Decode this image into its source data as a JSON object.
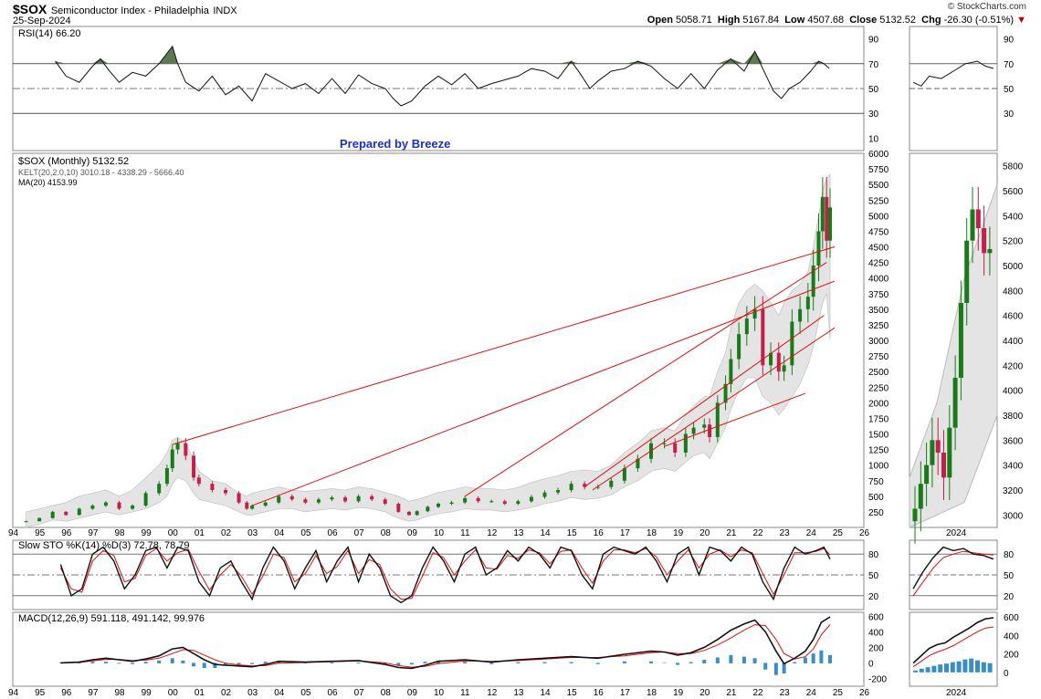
{
  "header": {
    "symbol": "$SOX",
    "name": "Semiconductor Index - Philadelphia",
    "exchange": "INDX",
    "date": "25-Sep-2024",
    "copyright": "© StockCharts.com",
    "open_label": "Open",
    "open": "5058.71",
    "high_label": "High",
    "high": "5167.84",
    "low_label": "Low",
    "low": "4507.68",
    "close_label": "Close",
    "close": "5132.52",
    "chg_label": "Chg",
    "chg": "-26.30 (-0.51%)",
    "down_arrow": "▼"
  },
  "annotation": "Prepared by Breeze",
  "colors": {
    "up": "#1a7a1a",
    "down": "#c0204a",
    "trendline": "#e01010",
    "rsi_fill": "#5c7a52",
    "macd_hist": "#3a8fc0",
    "signal": "#e01010",
    "band": "#e4e4e4"
  },
  "chart_data": [
    {
      "id": "rsi",
      "type": "line",
      "label": "RSI(14) 66.20",
      "ylim": [
        0,
        100
      ],
      "yticks": [
        10,
        30,
        50,
        70,
        90
      ],
      "reference_lines": [
        30,
        50,
        70
      ],
      "x": [
        1995.6,
        1996.0,
        1996.5,
        1997.0,
        1997.3,
        1997.6,
        1998.0,
        1998.5,
        1999.0,
        1999.5,
        2000.0,
        2000.2,
        2000.5,
        2001.0,
        2001.5,
        2002.0,
        2002.5,
        2003.0,
        2003.5,
        2004.0,
        2004.5,
        2005.0,
        2005.5,
        2006.0,
        2006.5,
        2007.0,
        2007.5,
        2008.0,
        2008.3,
        2008.6,
        2009.0,
        2009.5,
        2010.0,
        2010.5,
        2011.0,
        2011.5,
        2012.0,
        2012.5,
        2013.0,
        2013.5,
        2014.0,
        2014.5,
        2015.0,
        2015.3,
        2015.7,
        2016.0,
        2016.5,
        2017.0,
        2017.5,
        2018.0,
        2018.5,
        2019.0,
        2019.5,
        2020.0,
        2020.5,
        2021.0,
        2021.5,
        2021.9,
        2022.2,
        2022.6,
        2022.9,
        2023.2,
        2023.6,
        2024.0,
        2024.3,
        2024.5,
        2024.7
      ],
      "y": [
        72,
        60,
        55,
        68,
        74,
        65,
        55,
        63,
        60,
        70,
        84,
        70,
        55,
        48,
        60,
        45,
        52,
        40,
        62,
        56,
        50,
        54,
        46,
        58,
        46,
        61,
        54,
        50,
        42,
        36,
        40,
        52,
        60,
        53,
        62,
        50,
        54,
        57,
        60,
        66,
        64,
        58,
        72,
        63,
        50,
        56,
        64,
        66,
        72,
        68,
        58,
        50,
        62,
        50,
        65,
        74,
        64,
        80,
        66,
        48,
        42,
        50,
        55,
        64,
        72,
        70,
        66.2
      ]
    },
    {
      "id": "price",
      "type": "candlestick",
      "title": "$SOX (Monthly) 5132.52",
      "kelt_label": "KELT(20,2.0,10) 3010.18 - 4338.29 - 5666.40",
      "ma_label": "MA(20) 4153.99",
      "ylim": [
        0,
        6000
      ],
      "yticks": [
        250,
        500,
        750,
        1000,
        1250,
        1500,
        1750,
        2000,
        2250,
        2500,
        2750,
        3000,
        3250,
        3500,
        3750,
        4000,
        4250,
        4500,
        4750,
        5000,
        5250,
        5500,
        5750,
        6000
      ],
      "xticks": [
        "94",
        "95",
        "96",
        "97",
        "98",
        "99",
        "00",
        "01",
        "02",
        "03",
        "04",
        "05",
        "06",
        "07",
        "08",
        "09",
        "10",
        "11",
        "12",
        "13",
        "14",
        "15",
        "16",
        "17",
        "18",
        "19",
        "20",
        "21",
        "22",
        "23",
        "24",
        "25",
        "26"
      ],
      "x": [
        1994.5,
        1995.0,
        1995.5,
        1996.0,
        1996.5,
        1997.0,
        1997.5,
        1998.0,
        1998.5,
        1999.0,
        1999.5,
        1999.8,
        2000.0,
        2000.2,
        2000.5,
        2000.8,
        2001.0,
        2001.5,
        2002.0,
        2002.5,
        2002.8,
        2003.0,
        2003.5,
        2004.0,
        2004.5,
        2005.0,
        2005.5,
        2006.0,
        2006.5,
        2007.0,
        2007.5,
        2008.0,
        2008.5,
        2008.9,
        2009.2,
        2009.6,
        2010.0,
        2010.5,
        2011.0,
        2011.5,
        2012.0,
        2012.5,
        2013.0,
        2013.5,
        2014.0,
        2014.5,
        2015.0,
        2015.5,
        2016.0,
        2016.5,
        2017.0,
        2017.5,
        2018.0,
        2018.5,
        2018.9,
        2019.3,
        2019.6,
        2020.0,
        2020.2,
        2020.5,
        2020.8,
        2021.0,
        2021.3,
        2021.6,
        2021.9,
        2022.2,
        2022.5,
        2022.8,
        2023.0,
        2023.3,
        2023.6,
        2023.9,
        2024.1,
        2024.3,
        2024.45,
        2024.6,
        2024.73
      ],
      "y": [
        100,
        150,
        250,
        200,
        300,
        350,
        400,
        300,
        350,
        550,
        700,
        950,
        1250,
        1350,
        1150,
        800,
        700,
        600,
        550,
        400,
        300,
        350,
        400,
        500,
        450,
        400,
        450,
        480,
        420,
        500,
        450,
        380,
        250,
        200,
        260,
        330,
        380,
        400,
        470,
        420,
        420,
        380,
        420,
        490,
        560,
        600,
        700,
        650,
        650,
        750,
        950,
        1100,
        1350,
        1350,
        1200,
        1500,
        1600,
        1650,
        1450,
        2000,
        2300,
        2700,
        3100,
        3350,
        3500,
        2600,
        2800,
        2500,
        2600,
        3300,
        3500,
        3700,
        4200,
        4750,
        5300,
        4600,
        5132.52
      ],
      "keltner_upper": [
        250,
        300,
        350,
        400,
        500,
        550,
        600,
        500,
        600,
        800,
        1000,
        1200,
        1400,
        1450,
        1350,
        1100,
        900,
        750,
        700,
        550,
        500,
        550,
        600,
        650,
        600,
        580,
        600,
        620,
        600,
        650,
        620,
        560,
        500,
        420,
        450,
        500,
        560,
        600,
        650,
        620,
        620,
        600,
        640,
        720,
        780,
        830,
        900,
        920,
        900,
        1000,
        1200,
        1350,
        1550,
        1600,
        1550,
        1800,
        1950,
        2100,
        2100,
        2500,
        2800,
        3200,
        3600,
        3800,
        3900,
        3800,
        3600,
        3400,
        3600,
        3800,
        3900,
        4100,
        4500,
        5000,
        5400,
        5600,
        5666.4
      ],
      "keltner_lower": [
        0,
        50,
        120,
        100,
        150,
        200,
        250,
        200,
        250,
        300,
        400,
        500,
        700,
        800,
        750,
        550,
        450,
        400,
        350,
        250,
        200,
        200,
        250,
        300,
        300,
        250,
        280,
        300,
        280,
        320,
        300,
        250,
        150,
        100,
        120,
        180,
        220,
        250,
        300,
        280,
        280,
        250,
        280,
        320,
        380,
        420,
        480,
        450,
        470,
        520,
        650,
        750,
        900,
        950,
        900,
        1050,
        1150,
        1200,
        1100,
        1350,
        1600,
        1900,
        2200,
        2400,
        2400,
        2100,
        2000,
        1800,
        1900,
        2100,
        2300,
        2600,
        2900,
        3300,
        3600,
        3750,
        3010.18
      ]
    },
    {
      "id": "sto",
      "type": "line",
      "label": "Slow STO %K(14) %D(3) 72.78, 78.79",
      "ylim": [
        0,
        100
      ],
      "yticks": [
        20,
        50,
        80
      ],
      "reference_lines": [
        20,
        50,
        80
      ],
      "x": [
        1995.8,
        1996.2,
        1996.6,
        1997.0,
        1997.4,
        1997.8,
        1998.2,
        1998.6,
        1999.0,
        1999.4,
        1999.8,
        2000.2,
        2000.6,
        2001.0,
        2001.4,
        2001.8,
        2002.2,
        2002.6,
        2003.0,
        2003.4,
        2003.8,
        2004.2,
        2004.6,
        2005.0,
        2005.4,
        2005.8,
        2006.2,
        2006.6,
        2007.0,
        2007.4,
        2007.8,
        2008.2,
        2008.6,
        2009.0,
        2009.4,
        2009.8,
        2010.2,
        2010.6,
        2011.0,
        2011.4,
        2011.8,
        2012.2,
        2012.6,
        2013.0,
        2013.4,
        2013.8,
        2014.2,
        2014.6,
        2015.0,
        2015.4,
        2015.8,
        2016.2,
        2016.6,
        2017.0,
        2017.4,
        2017.8,
        2018.2,
        2018.6,
        2019.0,
        2019.4,
        2019.8,
        2020.2,
        2020.6,
        2021.0,
        2021.4,
        2021.8,
        2022.2,
        2022.6,
        2023.0,
        2023.4,
        2023.8,
        2024.2,
        2024.5,
        2024.73
      ],
      "k": [
        65,
        20,
        30,
        80,
        90,
        70,
        30,
        50,
        85,
        90,
        60,
        90,
        85,
        40,
        20,
        60,
        70,
        40,
        15,
        60,
        90,
        70,
        30,
        60,
        85,
        40,
        70,
        90,
        40,
        80,
        60,
        20,
        10,
        20,
        60,
        90,
        70,
        40,
        80,
        90,
        50,
        60,
        85,
        70,
        90,
        80,
        60,
        90,
        85,
        50,
        30,
        80,
        90,
        85,
        80,
        90,
        70,
        40,
        80,
        90,
        50,
        90,
        85,
        70,
        90,
        80,
        40,
        15,
        60,
        90,
        80,
        85,
        90,
        72.78
      ],
      "d": [
        60,
        30,
        25,
        70,
        85,
        78,
        40,
        45,
        78,
        88,
        70,
        82,
        87,
        55,
        28,
        50,
        65,
        48,
        22,
        48,
        80,
        75,
        40,
        52,
        78,
        52,
        62,
        85,
        52,
        72,
        65,
        30,
        15,
        16,
        48,
        82,
        75,
        50,
        70,
        86,
        60,
        58,
        78,
        74,
        86,
        82,
        66,
        84,
        86,
        60,
        38,
        70,
        86,
        86,
        82,
        88,
        76,
        50,
        70,
        86,
        60,
        80,
        86,
        76,
        86,
        82,
        52,
        22,
        50,
        82,
        82,
        84,
        88,
        78.79
      ]
    },
    {
      "id": "macd",
      "type": "line",
      "label": "MACD(12,26,9) 591.118, 491.142, 99.976",
      "ylim": [
        -300,
        650
      ],
      "yticks": [
        -200,
        0,
        200,
        400,
        600
      ],
      "x": [
        1995.8,
        1996.5,
        1997.0,
        1997.5,
        1998.0,
        1998.5,
        1999.0,
        1999.5,
        2000.0,
        2000.4,
        2000.8,
        2001.2,
        2001.6,
        2002.0,
        2002.5,
        2003.0,
        2003.5,
        2004.0,
        2005.0,
        2006.0,
        2007.0,
        2008.0,
        2008.5,
        2009.0,
        2009.5,
        2010.0,
        2011.0,
        2012.0,
        2013.0,
        2014.0,
        2015.0,
        2016.0,
        2017.0,
        2018.0,
        2018.5,
        2019.0,
        2019.5,
        2020.0,
        2020.5,
        2021.0,
        2021.5,
        2021.9,
        2022.3,
        2022.7,
        2023.0,
        2023.4,
        2023.8,
        2024.1,
        2024.4,
        2024.73
      ],
      "macd": [
        0,
        10,
        40,
        60,
        40,
        20,
        50,
        90,
        180,
        200,
        120,
        40,
        -20,
        -30,
        -40,
        -50,
        -20,
        20,
        10,
        20,
        30,
        -20,
        -60,
        -70,
        -30,
        20,
        40,
        10,
        40,
        60,
        80,
        60,
        110,
        150,
        140,
        100,
        130,
        200,
        300,
        420,
        500,
        550,
        400,
        150,
        -10,
        60,
        150,
        300,
        520,
        591.118
      ],
      "signal": [
        0,
        5,
        25,
        45,
        45,
        30,
        35,
        60,
        120,
        170,
        160,
        100,
        40,
        -5,
        -25,
        -40,
        -35,
        -5,
        5,
        15,
        25,
        0,
        -35,
        -55,
        -45,
        -10,
        25,
        20,
        30,
        50,
        70,
        70,
        90,
        130,
        140,
        120,
        120,
        160,
        230,
        320,
        420,
        490,
        480,
        300,
        120,
        50,
        80,
        180,
        360,
        491.142
      ],
      "histogram": [
        0,
        5,
        15,
        15,
        -5,
        -10,
        15,
        30,
        60,
        30,
        -40,
        -60,
        -60,
        -25,
        -15,
        -10,
        15,
        25,
        5,
        5,
        5,
        -20,
        -25,
        -15,
        15,
        30,
        15,
        -10,
        10,
        10,
        10,
        -10,
        20,
        20,
        0,
        -20,
        10,
        40,
        70,
        100,
        80,
        60,
        -80,
        -150,
        -130,
        10,
        70,
        120,
        160,
        99.976
      ]
    }
  ],
  "zoom_panel": {
    "xticks": [
      "2024"
    ],
    "price_yticks": [
      "3000",
      "3200",
      "3400",
      "3600",
      "3800",
      "4000",
      "4200",
      "4400",
      "4600",
      "4800",
      "5000",
      "5200",
      "5400",
      "5600",
      "5800"
    ],
    "rsi_yticks": [
      "30",
      "50",
      "70",
      "90"
    ],
    "sto_yticks": [
      "20",
      "50",
      "80"
    ],
    "macd_yticks": [
      "0",
      "200",
      "400",
      "600"
    ]
  }
}
